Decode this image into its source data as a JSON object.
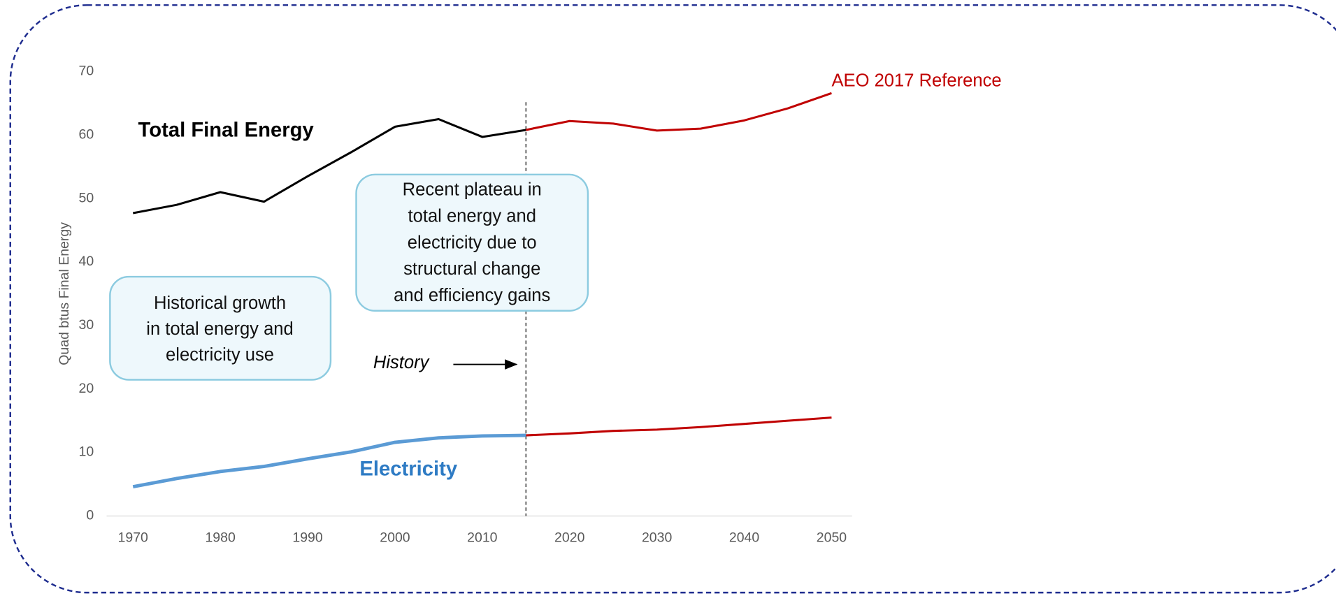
{
  "chart_data": {
    "type": "line",
    "y_label": "Quad btus Final Energy",
    "xlim": [
      1967,
      2052
    ],
    "ylim": [
      0,
      70
    ],
    "xticks": [
      1970,
      1980,
      1990,
      2000,
      2010,
      2020,
      2030,
      2040,
      2050
    ],
    "yticks": [
      0,
      10,
      20,
      30,
      40,
      50,
      60,
      70
    ],
    "series": [
      {
        "color": "#000000",
        "x": [
          1970,
          1975,
          1980,
          1985,
          1990,
          1995,
          2000,
          2005,
          2010,
          2015
        ],
        "values": [
          47.7,
          49,
          51,
          49.5,
          53.5,
          57.3,
          61.3,
          62.5,
          59.7,
          60.8
        ]
      },
      {
        "color": "#c00000",
        "x": [
          2015,
          2020,
          2025,
          2030,
          2035,
          2040,
          2045,
          2050
        ],
        "values": [
          60.8,
          62.2,
          61.8,
          60.7,
          61,
          62.3,
          64.2,
          66.6
        ]
      },
      {
        "color": "#5b9bd5",
        "x": [
          1970,
          1975,
          1980,
          1985,
          1990,
          1995,
          2000,
          2005,
          2010,
          2015
        ],
        "values": [
          4.6,
          5.9,
          7,
          7.8,
          9,
          10.1,
          11.6,
          12.3,
          12.6,
          12.7
        ]
      },
      {
        "color": "#c00000",
        "x": [
          2015,
          2020,
          2025,
          2030,
          2035,
          2040,
          2045,
          2050
        ],
        "values": [
          12.7,
          13,
          13.4,
          13.6,
          14,
          14.5,
          15,
          15.5
        ]
      }
    ],
    "annotations": [
      {
        "text": "Total Final Energy"
      },
      {
        "text": "Electricity"
      },
      {
        "text": "AEO 2017 Reference"
      },
      {
        "text": "History"
      },
      {
        "lines": [
          "Historical growth",
          "in total energy and",
          "electricity use"
        ]
      },
      {
        "lines": [
          "Recent plateau in",
          "total energy and",
          "electricity due to",
          "structural change",
          "and efficiency gains"
        ]
      }
    ]
  }
}
